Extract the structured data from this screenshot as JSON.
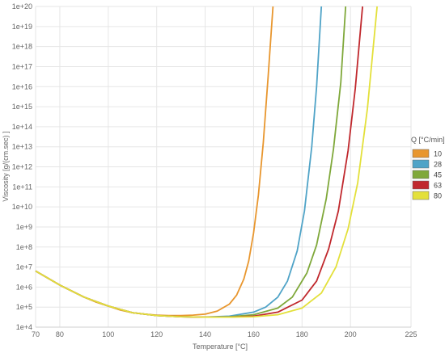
{
  "chart_data": {
    "type": "line",
    "title": "",
    "xlabel": "Temperature [°C]",
    "ylabel": "Viscosity [g/(cm.sec) ]",
    "xlim": [
      70,
      225
    ],
    "ylim_log10": [
      4,
      20
    ],
    "y_scale": "log",
    "grid": true,
    "legend_position": "right",
    "legend_title": "Q [°C/min]",
    "x_ticks": [
      "70",
      "80",
      "100",
      "120",
      "140",
      "160",
      "180",
      "200",
      "225"
    ],
    "x_tick_values": [
      70,
      80,
      100,
      120,
      140,
      160,
      180,
      200,
      225
    ],
    "y_ticks": [
      "1e+4",
      "1e+5",
      "1e+6",
      "1e+7",
      "1e+8",
      "1e+9",
      "1e+10",
      "1e+11",
      "1e+12",
      "1e+13",
      "1e+14",
      "1e+15",
      "1e+16",
      "1e+17",
      "1e+18",
      "1e+19",
      "1e+20"
    ],
    "y_tick_values": [
      4,
      5,
      6,
      7,
      8,
      9,
      10,
      11,
      12,
      13,
      14,
      15,
      16,
      17,
      18,
      19,
      20
    ],
    "series": [
      {
        "name": "10",
        "color": "#e8962e",
        "x": [
          70,
          75,
          80,
          85,
          90,
          95,
          100,
          105,
          110,
          115,
          120,
          125,
          130,
          135,
          140,
          145,
          150,
          153,
          156,
          158,
          160,
          162,
          164,
          166,
          168
        ],
        "log10_y": [
          6.8,
          6.45,
          6.1,
          5.8,
          5.5,
          5.25,
          5.05,
          4.85,
          4.72,
          4.65,
          4.6,
          4.58,
          4.58,
          4.6,
          4.65,
          4.8,
          5.15,
          5.6,
          6.4,
          7.3,
          8.7,
          10.6,
          13.2,
          16.5,
          20
        ]
      },
      {
        "name": "28",
        "color": "#4fa3c7",
        "x": [
          70,
          80,
          90,
          100,
          110,
          120,
          130,
          140,
          150,
          160,
          165,
          170,
          174,
          178,
          181,
          184,
          186,
          188
        ],
        "log10_y": [
          6.8,
          6.1,
          5.5,
          5.05,
          4.72,
          4.58,
          4.52,
          4.5,
          4.55,
          4.75,
          5.0,
          5.5,
          6.3,
          7.8,
          9.8,
          13.0,
          16.0,
          20
        ]
      },
      {
        "name": "45",
        "color": "#7fa83a",
        "x": [
          70,
          80,
          90,
          100,
          110,
          120,
          130,
          140,
          150,
          160,
          170,
          176,
          182,
          186,
          190,
          193,
          196,
          198
        ],
        "log10_y": [
          6.8,
          6.1,
          5.5,
          5.05,
          4.72,
          4.58,
          4.52,
          4.5,
          4.52,
          4.62,
          4.95,
          5.5,
          6.7,
          8.1,
          10.4,
          12.9,
          16.2,
          20
        ]
      },
      {
        "name": "63",
        "color": "#c0282d",
        "x": [
          70,
          80,
          90,
          100,
          110,
          120,
          130,
          140,
          150,
          160,
          170,
          180,
          186,
          191,
          195,
          199,
          202,
          205
        ],
        "log10_y": [
          6.8,
          6.1,
          5.5,
          5.05,
          4.72,
          4.58,
          4.52,
          4.5,
          4.5,
          4.55,
          4.75,
          5.35,
          6.3,
          7.9,
          9.8,
          12.8,
          15.9,
          20
        ]
      },
      {
        "name": "80",
        "color": "#e3e03a",
        "x": [
          70,
          80,
          90,
          100,
          110,
          120,
          130,
          140,
          150,
          160,
          170,
          180,
          188,
          194,
          199,
          203,
          207,
          211
        ],
        "log10_y": [
          6.8,
          6.1,
          5.5,
          5.05,
          4.72,
          4.58,
          4.52,
          4.5,
          4.5,
          4.52,
          4.62,
          4.95,
          5.7,
          7.0,
          8.9,
          11.2,
          14.9,
          20
        ]
      }
    ]
  }
}
